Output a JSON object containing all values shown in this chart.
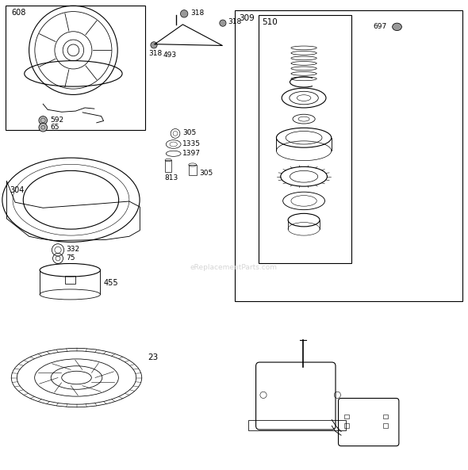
{
  "bg_color": "#ffffff",
  "line_color": "#000000",
  "watermark": "eReplacementParts.com"
}
